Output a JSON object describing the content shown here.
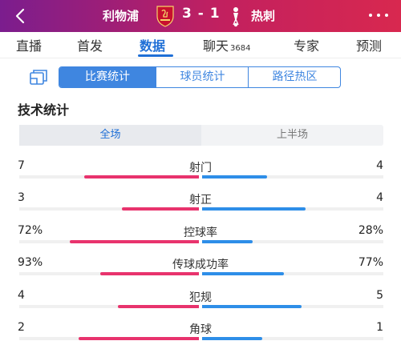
{
  "header": {
    "home_team": "利物浦",
    "away_team": "热刺",
    "score": "3 - 1",
    "home_badge_icon": "liverpool-badge-icon",
    "away_badge_icon": "tottenham-badge-icon",
    "colors": {
      "gradient_start": "#7b1d8e",
      "gradient_end": "#d8284f"
    }
  },
  "tabs": [
    {
      "label": "直播"
    },
    {
      "label": "首发"
    },
    {
      "label": "数据",
      "active": true
    },
    {
      "label": "聊天",
      "count": "3684"
    },
    {
      "label": "专家"
    },
    {
      "label": "预测"
    }
  ],
  "subtabs": [
    {
      "label": "比赛统计",
      "active": true
    },
    {
      "label": "球员统计"
    },
    {
      "label": "路径热区"
    }
  ],
  "section_title": "技术统计",
  "half_toggle": [
    {
      "label": "全场",
      "active": true
    },
    {
      "label": "上半场"
    }
  ],
  "stats": [
    {
      "label": "射门",
      "home": "7",
      "away": "4",
      "home_share": 0.64,
      "away_share": 0.36
    },
    {
      "label": "射正",
      "home": "3",
      "away": "4",
      "home_share": 0.43,
      "away_share": 0.57
    },
    {
      "label": "控球率",
      "home": "72%",
      "away": "28%",
      "home_share": 0.72,
      "away_share": 0.28
    },
    {
      "label": "传球成功率",
      "home": "93%",
      "away": "77%",
      "home_share": 0.55,
      "away_share": 0.45
    },
    {
      "label": "犯规",
      "home": "4",
      "away": "5",
      "home_share": 0.45,
      "away_share": 0.55
    },
    {
      "label": "角球",
      "home": "2",
      "away": "1",
      "home_share": 0.67,
      "away_share": 0.33
    }
  ],
  "colors": {
    "accent": "#1f6fd6",
    "home_bar": "#e8336d",
    "away_bar": "#2e8ee8"
  }
}
